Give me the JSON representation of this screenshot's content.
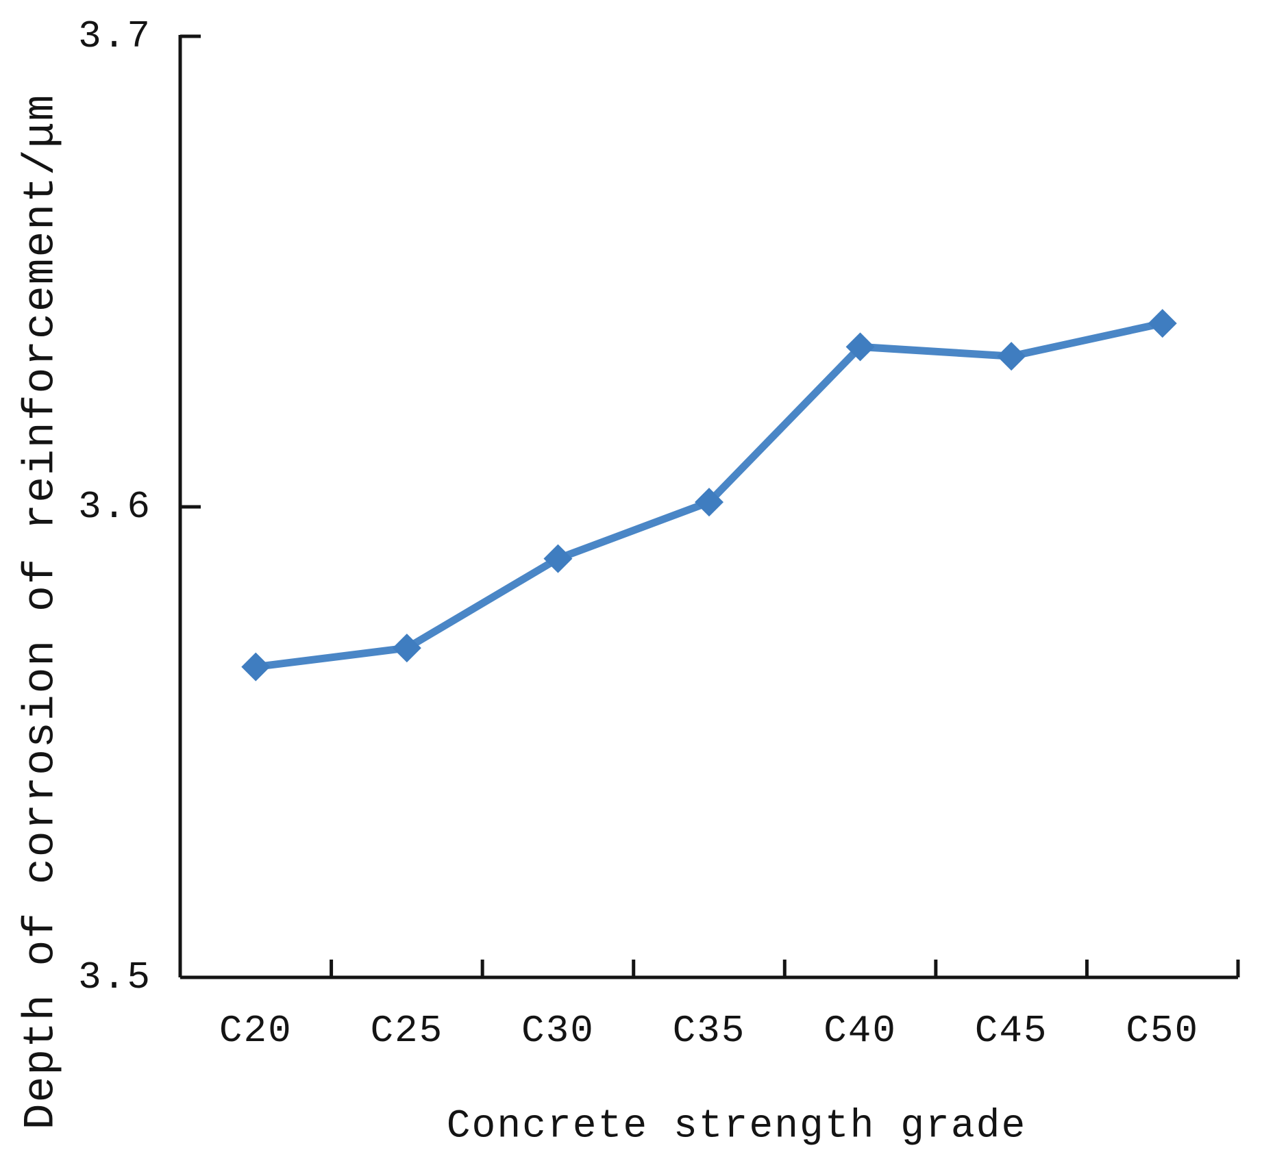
{
  "chart_data": {
    "type": "line",
    "title": "",
    "xlabel": "Concrete strength grade",
    "ylabel": "Depth of corrosion of reinforcement/μm",
    "categories": [
      "C20",
      "C25",
      "C30",
      "C35",
      "C40",
      "C45",
      "C50"
    ],
    "values": [
      3.566,
      3.57,
      3.589,
      3.601,
      3.634,
      3.632,
      3.639
    ],
    "ylim": [
      3.5,
      3.7
    ],
    "yticks": [
      3.5,
      3.6,
      3.7
    ],
    "ytick_labels": [
      "3.5",
      "3.6",
      "3.7"
    ],
    "grid": false,
    "legend": false,
    "marker": "diamond",
    "colors": {
      "line": "#4a86c6",
      "marker": "#3f7dc0",
      "axis": "#141414",
      "text": "#141414",
      "background": "#ffffff"
    }
  }
}
